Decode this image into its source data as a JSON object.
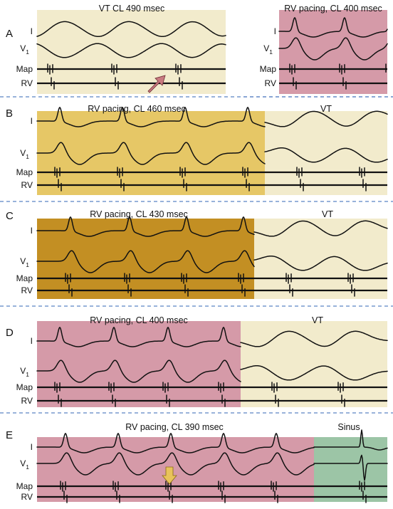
{
  "panels": [
    {
      "label": "A",
      "segments": [
        {
          "title": "VT CL 490 msec",
          "kind": "vt",
          "color": "#f2ebcc",
          "leads": [
            "I",
            "V",
            "Map",
            "RV"
          ],
          "subscript": "1"
        },
        {
          "title": "RV pacing, CL 400 msec",
          "kind": "pace",
          "color": "#d59aa8",
          "leads": [
            "I",
            "V",
            "Map",
            "RV"
          ],
          "subscript": "1"
        }
      ],
      "marker": {
        "type": "arrow",
        "color": "#c97a80"
      }
    },
    {
      "label": "B",
      "segments": [
        {
          "title": "RV pacing, CL 460 msec",
          "kind": "pace",
          "color": "#e6c766"
        },
        {
          "title": "VT",
          "kind": "vt",
          "color": "#f2ebcc"
        }
      ],
      "leads": [
        "I",
        "V",
        "Map",
        "RV"
      ],
      "subscript": "1"
    },
    {
      "label": "C",
      "segments": [
        {
          "title": "RV pacing, CL 430 msec",
          "kind": "pace",
          "color": "#c38f23"
        },
        {
          "title": "VT",
          "kind": "vt",
          "color": "#f2ebcc"
        }
      ],
      "leads": [
        "I",
        "V",
        "Map",
        "RV"
      ],
      "subscript": "1"
    },
    {
      "label": "D",
      "segments": [
        {
          "title": "RV pacing, CL 400 msec",
          "kind": "pace",
          "color": "#d59aa8"
        },
        {
          "title": "VT",
          "kind": "vt",
          "color": "#f2ebcc"
        }
      ],
      "leads": [
        "I",
        "V",
        "Map",
        "RV"
      ],
      "subscript": "1"
    },
    {
      "label": "E",
      "segments": [
        {
          "title": "RV pacing, CL 390 msec",
          "kind": "pace",
          "color": "#d59aa8"
        },
        {
          "title": "Sinus",
          "kind": "sinus",
          "color": "#9cc5a6"
        }
      ],
      "leads": [
        "I",
        "V",
        "Map",
        "RV"
      ],
      "subscript": "1",
      "marker": {
        "type": "arrow-down",
        "color": "#e8c35a"
      }
    }
  ]
}
